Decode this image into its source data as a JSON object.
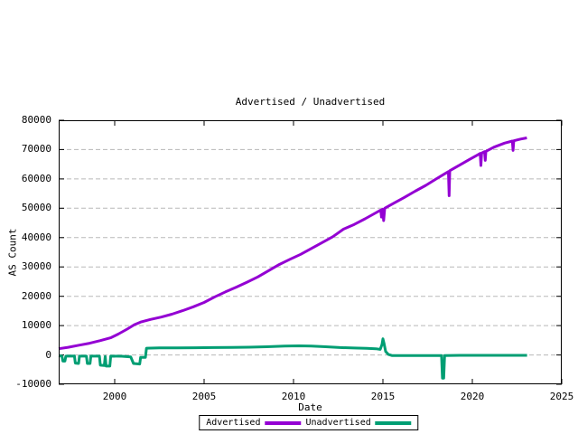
{
  "chart_data": {
    "type": "line",
    "title": "Advertised / Unadvertised",
    "xlabel": "Date",
    "ylabel": "AS Count",
    "xlim": [
      1996.87,
      2025
    ],
    "ylim": [
      -10000,
      80000
    ],
    "x_ticks": [
      2000,
      2005,
      2010,
      2015,
      2020,
      2025
    ],
    "y_ticks": [
      -10000,
      0,
      10000,
      20000,
      30000,
      40000,
      50000,
      60000,
      70000,
      80000
    ],
    "grid": "horizontal-dashed",
    "grid_color": "#b8b8b8",
    "border_color": "#000000",
    "legend_position": "below-x-axis-label",
    "series": [
      {
        "name": "Advertised",
        "color": "#9400d3",
        "points": [
          [
            1996.87,
            2100
          ],
          [
            1997.4,
            2600
          ],
          [
            1998.0,
            3300
          ],
          [
            1998.6,
            4000
          ],
          [
            1999.2,
            4900
          ],
          [
            1999.8,
            5900
          ],
          [
            2000.2,
            7100
          ],
          [
            2000.7,
            8800
          ],
          [
            2001.1,
            10300
          ],
          [
            2001.45,
            11200
          ],
          [
            2002.0,
            12100
          ],
          [
            2002.6,
            12900
          ],
          [
            2003.2,
            13900
          ],
          [
            2003.8,
            15100
          ],
          [
            2004.4,
            16400
          ],
          [
            2005.0,
            17900
          ],
          [
            2005.6,
            19800
          ],
          [
            2006.2,
            21500
          ],
          [
            2006.8,
            23100
          ],
          [
            2007.4,
            24800
          ],
          [
            2008.0,
            26600
          ],
          [
            2008.6,
            28700
          ],
          [
            2009.2,
            30800
          ],
          [
            2009.8,
            32600
          ],
          [
            2010.4,
            34300
          ],
          [
            2011.0,
            36300
          ],
          [
            2011.6,
            38300
          ],
          [
            2012.2,
            40300
          ],
          [
            2012.8,
            42900
          ],
          [
            2013.4,
            44500
          ],
          [
            2014.0,
            46400
          ],
          [
            2014.5,
            48100
          ],
          [
            2014.88,
            49400
          ],
          [
            2014.92,
            47000
          ],
          [
            2014.98,
            49700
          ],
          [
            2015.04,
            45800
          ],
          [
            2015.1,
            50000
          ],
          [
            2015.6,
            51700
          ],
          [
            2016.2,
            53700
          ],
          [
            2016.8,
            55800
          ],
          [
            2017.4,
            57800
          ],
          [
            2018.0,
            60100
          ],
          [
            2018.5,
            61900
          ],
          [
            2018.66,
            62500
          ],
          [
            2018.7,
            54300
          ],
          [
            2018.74,
            62800
          ],
          [
            2019.2,
            64400
          ],
          [
            2019.8,
            66500
          ],
          [
            2020.3,
            68200
          ],
          [
            2020.44,
            68700
          ],
          [
            2020.48,
            64600
          ],
          [
            2020.52,
            68800
          ],
          [
            2020.68,
            69300
          ],
          [
            2020.72,
            66300
          ],
          [
            2020.76,
            69400
          ],
          [
            2021.2,
            70800
          ],
          [
            2021.8,
            72200
          ],
          [
            2022.24,
            72900
          ],
          [
            2022.28,
            69700
          ],
          [
            2022.32,
            73000
          ],
          [
            2022.7,
            73600
          ],
          [
            2023.05,
            74000
          ]
        ]
      },
      {
        "name": "Unadvertised",
        "color": "#009e73",
        "points": [
          [
            1996.87,
            -300
          ],
          [
            1997.05,
            -400
          ],
          [
            1997.1,
            -2100
          ],
          [
            1997.22,
            -2100
          ],
          [
            1997.27,
            -400
          ],
          [
            1997.75,
            -350
          ],
          [
            1997.8,
            -2800
          ],
          [
            1997.98,
            -2900
          ],
          [
            1998.03,
            -400
          ],
          [
            1998.42,
            -400
          ],
          [
            1998.47,
            -2900
          ],
          [
            1998.62,
            -2900
          ],
          [
            1998.67,
            -400
          ],
          [
            1999.15,
            -400
          ],
          [
            1999.2,
            -3500
          ],
          [
            1999.42,
            -3600
          ],
          [
            1999.47,
            -500
          ],
          [
            1999.52,
            -3800
          ],
          [
            1999.73,
            -3800
          ],
          [
            1999.78,
            -400
          ],
          [
            2000.4,
            -450
          ],
          [
            2000.9,
            -700
          ],
          [
            2001.05,
            -2900
          ],
          [
            2001.4,
            -3100
          ],
          [
            2001.45,
            -800
          ],
          [
            2001.72,
            -800
          ],
          [
            2001.78,
            2300
          ],
          [
            2002.5,
            2400
          ],
          [
            2003.5,
            2400
          ],
          [
            2004.5,
            2450
          ],
          [
            2005.5,
            2500
          ],
          [
            2006.5,
            2550
          ],
          [
            2007.5,
            2650
          ],
          [
            2008.5,
            2800
          ],
          [
            2009.5,
            3000
          ],
          [
            2010.3,
            3100
          ],
          [
            2011.0,
            3050
          ],
          [
            2011.8,
            2800
          ],
          [
            2012.6,
            2500
          ],
          [
            2013.4,
            2350
          ],
          [
            2014.1,
            2250
          ],
          [
            2014.6,
            2100
          ],
          [
            2014.85,
            1900
          ],
          [
            2014.95,
            3600
          ],
          [
            2015.0,
            5500
          ],
          [
            2015.06,
            4000
          ],
          [
            2015.15,
            1200
          ],
          [
            2015.3,
            200
          ],
          [
            2015.5,
            -200
          ],
          [
            2016.5,
            -200
          ],
          [
            2017.5,
            -200
          ],
          [
            2018.28,
            -200
          ],
          [
            2018.33,
            -7900
          ],
          [
            2018.4,
            -7900
          ],
          [
            2018.45,
            -200
          ],
          [
            2019.5,
            -150
          ],
          [
            2020.5,
            -150
          ],
          [
            2021.5,
            -150
          ],
          [
            2022.5,
            -150
          ],
          [
            2023.06,
            -150
          ]
        ]
      }
    ]
  }
}
